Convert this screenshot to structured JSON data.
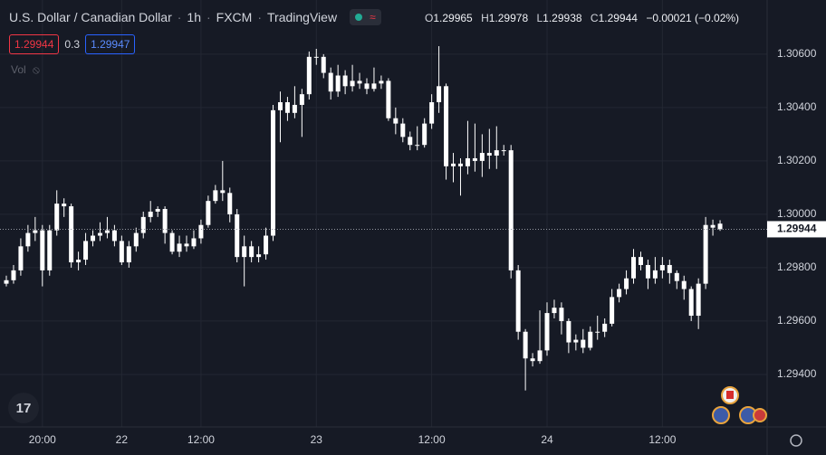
{
  "header": {
    "symbol": "U.S. Dollar / Canadian Dollar",
    "interval": "1h",
    "source": "FXCM",
    "platform": "TradingView",
    "ohlc_labels": [
      "O",
      "H",
      "L",
      "C"
    ],
    "change": "−0.00021 (−0.02%)",
    "bid": "1.29944",
    "spread": "0.3",
    "ask": "1.29947",
    "vol": "Vol"
  },
  "chart_data": {
    "type": "candlestick",
    "x": [
      null,
      null,
      null,
      null,
      null,
      "20:00",
      null,
      null,
      null,
      null,
      null,
      null,
      null,
      null,
      null,
      null,
      "22",
      null,
      null,
      null,
      null,
      null,
      null,
      null,
      null,
      null,
      null,
      "12:00",
      null,
      null,
      null,
      null,
      null,
      null,
      null,
      null,
      null,
      null,
      null,
      null,
      null,
      null,
      null,
      "23",
      null,
      null,
      null,
      null,
      null,
      null,
      null,
      null,
      null,
      null,
      null,
      null,
      null,
      null,
      null,
      "12:00",
      null,
      null,
      null,
      null,
      null,
      null,
      null,
      null,
      null,
      null,
      null,
      null,
      null,
      null,
      null,
      "24",
      null,
      null,
      null,
      null,
      null,
      null,
      null,
      null,
      null,
      null,
      null,
      null,
      null,
      null,
      null,
      "12:00",
      null,
      null,
      null,
      null,
      null,
      null,
      null,
      null
    ],
    "open": [
      1.2974,
      1.29753,
      1.2979,
      1.2988,
      1.2993,
      1.2994,
      1.2979,
      1.2994,
      1.3004,
      1.3003,
      1.2982,
      1.2983,
      1.299,
      1.2992,
      1.2993,
      1.2994,
      1.299,
      1.2982,
      1.2988,
      1.2993,
      1.2999,
      1.3001,
      1.3002,
      1.2993,
      1.2986,
      1.2989,
      1.2988,
      1.2991,
      1.2996,
      1.3005,
      1.3009,
      1.3008,
      1.3,
      1.2984,
      1.2988,
      1.2984,
      1.2985,
      1.2992,
      1.3039,
      1.3042,
      1.3038,
      1.3041,
      1.3045,
      1.3059,
      1.3059,
      1.3053,
      1.3046,
      1.3052,
      1.3048,
      1.305,
      1.3049,
      1.3047,
      1.3049,
      1.305,
      1.3036,
      1.3034,
      1.3029,
      1.3026,
      1.3026,
      1.3034,
      1.3042,
      1.3048,
      1.3018,
      1.3019,
      1.3018,
      1.3021,
      1.302,
      1.3023,
      1.3022,
      1.3024,
      1.3024,
      1.2979,
      1.2956,
      1.2946,
      1.2945,
      1.2949,
      1.2963,
      1.2965,
      1.296,
      1.2952,
      1.2953,
      1.295,
      1.2956,
      1.2956,
      1.2959,
      1.2969,
      1.2972,
      1.2976,
      1.2984,
      1.2981,
      1.2976,
      1.2979,
      1.2981,
      1.2978,
      1.2975,
      1.2972,
      1.2962,
      1.2974,
      1.2996,
      1.29965
    ],
    "high": [
      1.2977,
      1.2981,
      1.2991,
      1.2996,
      1.2999,
      1.2996,
      1.2996,
      1.3009,
      1.3006,
      1.3004,
      1.2986,
      1.2993,
      1.2994,
      1.2997,
      1.2999,
      1.2996,
      1.2992,
      1.299,
      1.2995,
      1.3001,
      1.3005,
      1.3003,
      1.3003,
      1.2994,
      1.2992,
      1.2992,
      1.2994,
      1.2998,
      1.3007,
      1.3011,
      1.302,
      1.301,
      1.3002,
      1.2992,
      1.299,
      1.2988,
      1.2995,
      1.3041,
      1.3046,
      1.3044,
      1.3048,
      1.3047,
      1.3061,
      1.3062,
      1.306,
      1.3055,
      1.3056,
      1.3054,
      1.3056,
      1.3053,
      1.3051,
      1.3055,
      1.3052,
      1.3051,
      1.304,
      1.3036,
      1.3031,
      1.3033,
      1.3036,
      1.3045,
      1.3063,
      1.3049,
      1.3023,
      1.3021,
      1.3035,
      1.3034,
      1.303,
      1.3032,
      1.3033,
      1.3026,
      1.3026,
      1.2981,
      1.2957,
      1.2948,
      1.2964,
      1.2967,
      1.2968,
      1.2967,
      1.2961,
      1.2955,
      1.2957,
      1.2958,
      1.2962,
      1.2961,
      1.2972,
      1.2974,
      1.2979,
      1.2987,
      1.2986,
      1.2983,
      1.2984,
      1.2984,
      1.2983,
      1.2979,
      1.2977,
      1.2973,
      1.2976,
      1.2999,
      1.2998,
      1.29978
    ],
    "low": [
      1.2973,
      1.2974,
      1.2977,
      1.2986,
      1.299,
      1.2973,
      1.2977,
      1.2992,
      1.2999,
      1.298,
      1.2979,
      1.2981,
      1.2988,
      1.299,
      1.2991,
      1.2988,
      1.2981,
      1.298,
      1.2986,
      1.2991,
      1.2997,
      1.2999,
      1.2989,
      1.2985,
      1.2984,
      1.2986,
      1.2987,
      1.2989,
      1.2995,
      1.3004,
      1.3005,
      1.2997,
      1.2982,
      1.2973,
      1.2982,
      1.2982,
      1.2983,
      1.299,
      1.3027,
      1.3035,
      1.3036,
      1.3029,
      1.3043,
      1.3056,
      1.3051,
      1.3043,
      1.3044,
      1.3045,
      1.3046,
      1.3047,
      1.3045,
      1.3046,
      1.3047,
      1.3035,
      1.303,
      1.3027,
      1.3024,
      1.3024,
      1.3025,
      1.3032,
      1.3038,
      1.3013,
      1.3012,
      1.3007,
      1.3015,
      1.3016,
      1.3014,
      1.3017,
      1.3017,
      1.3022,
      1.2976,
      1.2953,
      1.2934,
      1.2943,
      1.2944,
      1.2947,
      1.2961,
      1.2955,
      1.2948,
      1.2949,
      1.2948,
      1.2949,
      1.2953,
      1.2954,
      1.2958,
      1.2967,
      1.297,
      1.2974,
      1.2979,
      1.2972,
      1.2974,
      1.2976,
      1.2974,
      1.2972,
      1.2968,
      1.296,
      1.2957,
      1.2972,
      1.2992,
      1.29938
    ],
    "close": [
      1.29753,
      1.2979,
      1.2988,
      1.2993,
      1.2994,
      1.2979,
      1.2994,
      1.3004,
      1.3003,
      1.2982,
      1.2983,
      1.299,
      1.2992,
      1.2993,
      1.2994,
      1.299,
      1.2982,
      1.2988,
      1.2993,
      1.2999,
      1.3001,
      1.3002,
      1.2993,
      1.2986,
      1.2989,
      1.2988,
      1.2991,
      1.2996,
      1.3005,
      1.3009,
      1.3008,
      1.3,
      1.2984,
      1.2988,
      1.2984,
      1.2985,
      1.2992,
      1.3039,
      1.3042,
      1.3038,
      1.3041,
      1.3045,
      1.3059,
      1.3059,
      1.3053,
      1.3046,
      1.3052,
      1.3048,
      1.305,
      1.3049,
      1.3047,
      1.3049,
      1.305,
      1.3036,
      1.3034,
      1.3029,
      1.3026,
      1.3026,
      1.3034,
      1.3042,
      1.3048,
      1.3018,
      1.3019,
      1.3018,
      1.3021,
      1.302,
      1.3023,
      1.3022,
      1.3024,
      1.3024,
      1.2979,
      1.2956,
      1.2946,
      1.2945,
      1.2949,
      1.2963,
      1.2965,
      1.296,
      1.2952,
      1.2953,
      1.295,
      1.2956,
      1.2956,
      1.2959,
      1.2969,
      1.2972,
      1.2976,
      1.2984,
      1.2981,
      1.2976,
      1.2979,
      1.2981,
      1.2978,
      1.2975,
      1.2972,
      1.2962,
      1.2974,
      1.2996,
      1.2995,
      1.29944
    ],
    "color": "#ffffff",
    "ylim": [
      1.2921,
      1.30803
    ],
    "yticks": [
      {
        "value": 1.294,
        "label": "1.29400"
      },
      {
        "value": 1.296,
        "label": "1.29600"
      },
      {
        "value": 1.298,
        "label": "1.29800"
      },
      {
        "value": 1.3,
        "label": "1.30000"
      },
      {
        "value": 1.302,
        "label": "1.30200"
      },
      {
        "value": 1.304,
        "label": "1.30400"
      },
      {
        "value": 1.306,
        "label": "1.30600"
      }
    ],
    "grid": true
  }
}
